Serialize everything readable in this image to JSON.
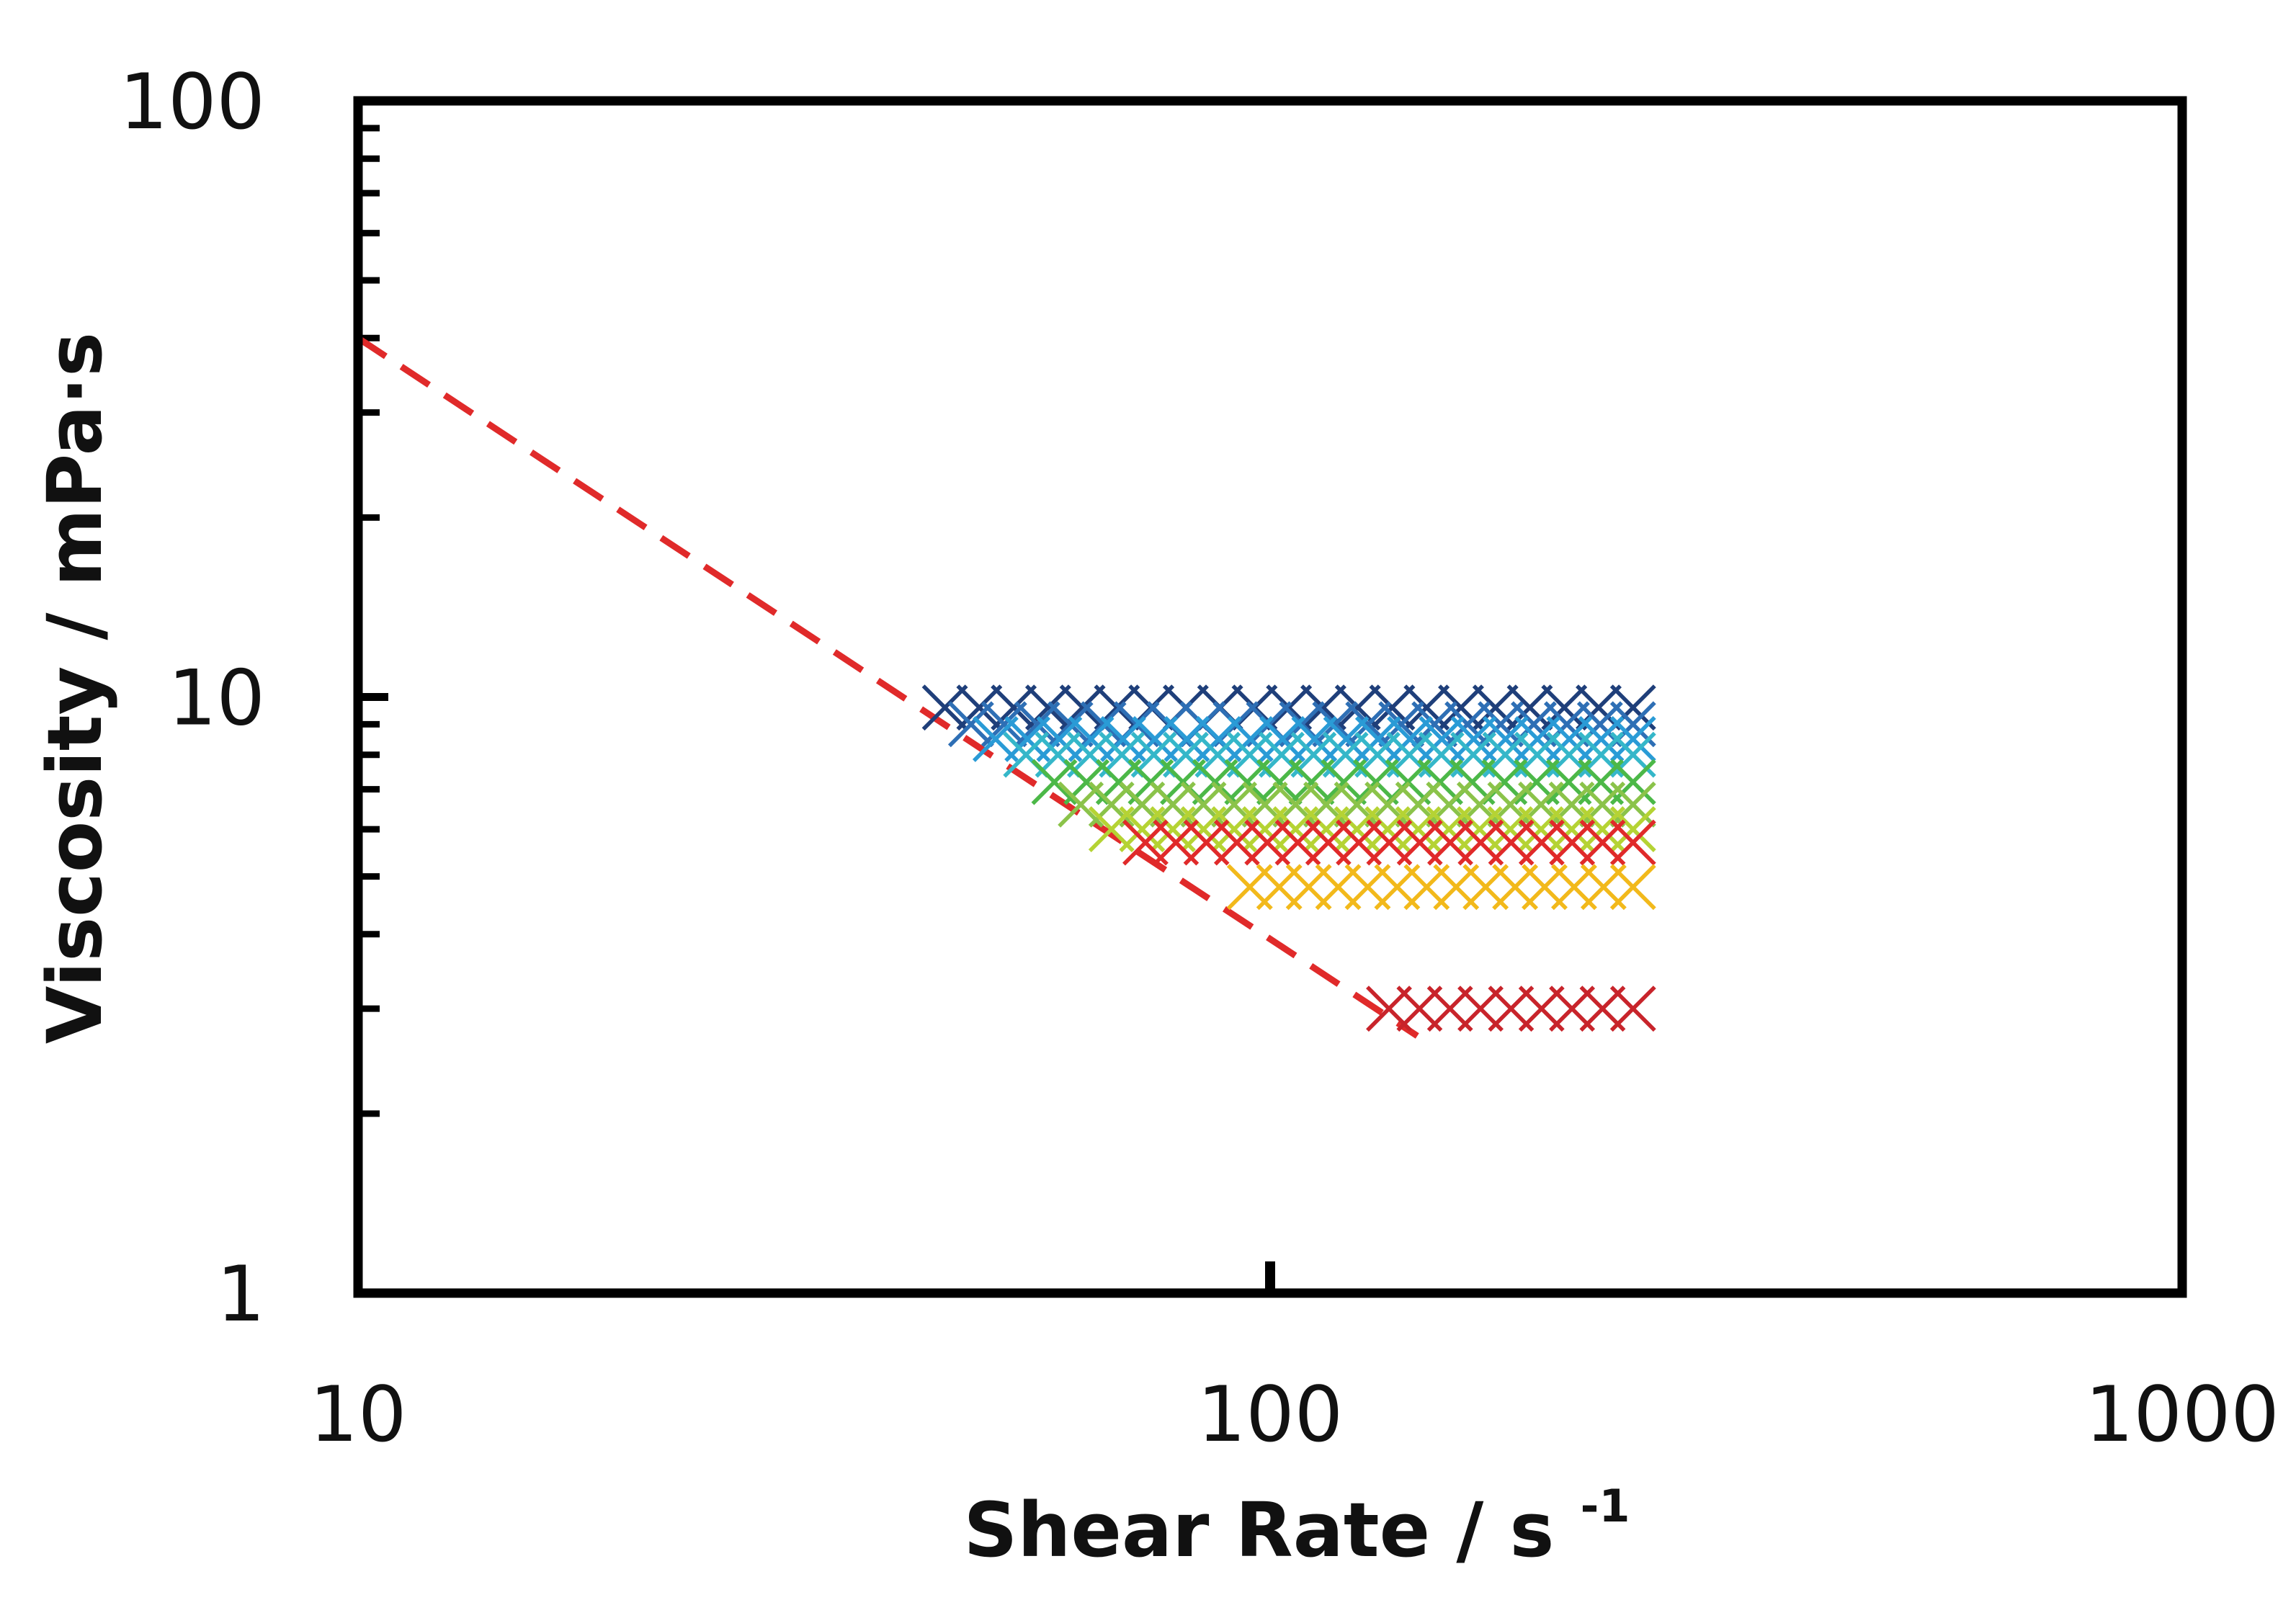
{
  "chart_data": {
    "type": "scatter",
    "title": "",
    "xlabel": "Shear Rate / s",
    "xlabel_superscript": "-1",
    "ylabel": "Viscosity / mPa·s",
    "xscale": "log",
    "yscale": "log",
    "xlim": [
      10,
      1000
    ],
    "ylim": [
      1,
      100
    ],
    "xticks": [
      "10",
      "100",
      "1000"
    ],
    "yticks": [
      "1",
      "10",
      "100"
    ],
    "grid": false,
    "legend": "none",
    "series": [
      {
        "color": "#1f3f7a",
        "x_start": 44,
        "x_end": 250,
        "y": 9.6,
        "points": 21
      },
      {
        "color": "#2e6fb5",
        "x_start": 47,
        "x_end": 250,
        "y": 9.0,
        "points": 21
      },
      {
        "color": "#2a9bd6",
        "x_start": 50,
        "x_end": 250,
        "y": 8.5,
        "points": 21
      },
      {
        "color": "#35b7c9",
        "x_start": 54,
        "x_end": 250,
        "y": 8.0,
        "points": 20
      },
      {
        "color": "#4cb848",
        "x_start": 58,
        "x_end": 250,
        "y": 7.2,
        "points": 19
      },
      {
        "color": "#8bc34a",
        "x_start": 62,
        "x_end": 250,
        "y": 6.6,
        "points": 19
      },
      {
        "color": "#b5d334",
        "x_start": 67,
        "x_end": 250,
        "y": 6.0,
        "points": 18
      },
      {
        "color": "#e02a2a",
        "x_start": 73,
        "x_end": 250,
        "y": 5.7,
        "points": 17
      },
      {
        "color": "#f2b91b",
        "x_start": 95,
        "x_end": 250,
        "y": 4.8,
        "points": 14
      },
      {
        "color": "#c8242b",
        "x_start": 135,
        "x_end": 250,
        "y": 3.0,
        "points": 9
      }
    ],
    "trendline": {
      "style": "dashed",
      "color": "#e02a2a",
      "x": [
        10,
        145
      ],
      "y": [
        40,
        2.7
      ]
    }
  }
}
